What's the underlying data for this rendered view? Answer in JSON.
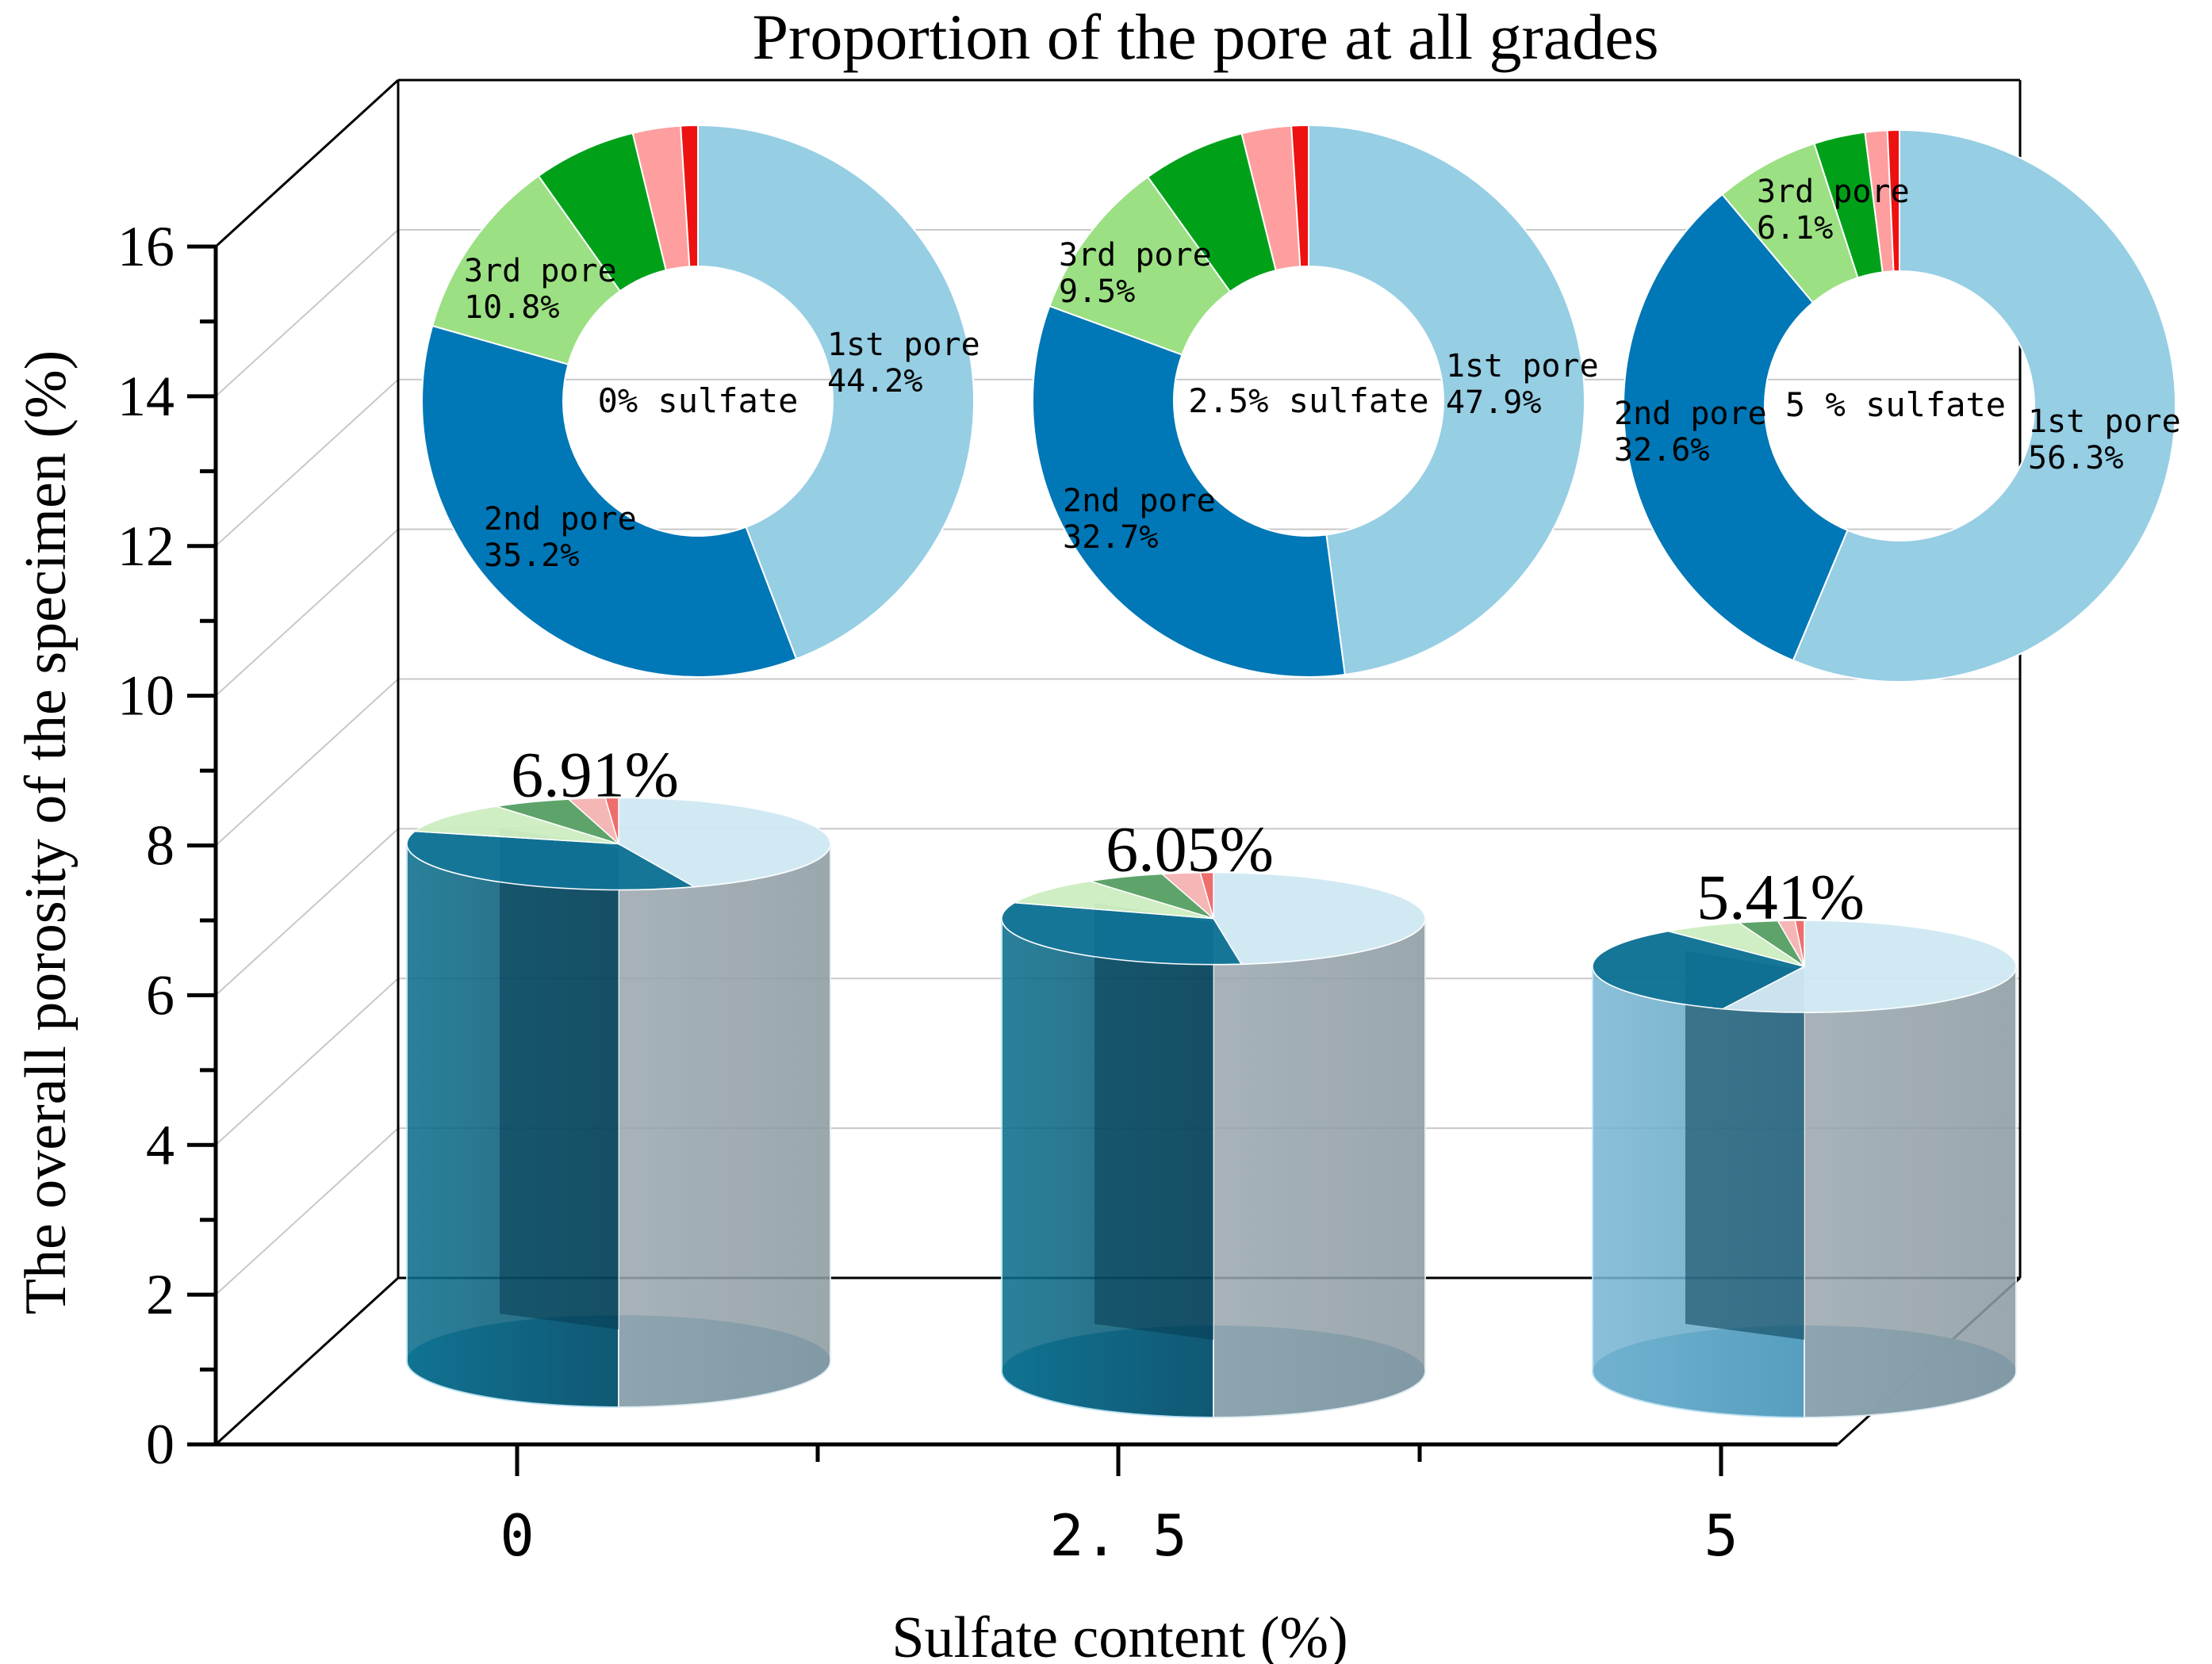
{
  "chart_data": {
    "type": "bar",
    "title": "Proportion of the pore at all grades",
    "xlabel": "Sulfate content (%)",
    "ylabel": "The overall porosity of the specimen (%)",
    "categories": [
      "0",
      "2. 5",
      "5"
    ],
    "values": [
      6.91,
      6.05,
      5.41
    ],
    "value_labels": [
      "6.91%",
      "6.05%",
      "5.41%"
    ],
    "ylim": [
      0,
      16
    ],
    "yticks": [
      0,
      2,
      4,
      6,
      8,
      10,
      12,
      14,
      16
    ],
    "ytick_labels": [
      "0",
      "2",
      "4",
      "6",
      "8",
      "10",
      "12",
      "14",
      "16"
    ],
    "grid": true,
    "bar_style": "3d-cylinder",
    "pie_series_colors": [
      "#96cee4",
      "#0077b6",
      "#9be083",
      "#00a119",
      "#ff9e9e",
      "#ee1111"
    ],
    "donuts": [
      {
        "center_label": "0% sulfate",
        "slices": [
          {
            "value": 44.2,
            "color": "#96cee4",
            "label_name": "1st pore",
            "label_value": "44.2%"
          },
          {
            "value": 35.2,
            "color": "#0077b6",
            "label_name": "2nd pore",
            "label_value": "35.2%"
          },
          {
            "value": 10.8,
            "color": "#9be083",
            "label_name": "3rd pore",
            "label_value": "10.8%"
          },
          {
            "value": 6.0,
            "color": "#00a119",
            "label_name": "",
            "label_value": ""
          },
          {
            "value": 2.8,
            "color": "#ff9e9e",
            "label_name": "",
            "label_value": ""
          },
          {
            "value": 1.0,
            "color": "#ee1111",
            "label_name": "",
            "label_value": ""
          }
        ]
      },
      {
        "center_label": "2.5% sulfate",
        "slices": [
          {
            "value": 47.9,
            "color": "#96cee4",
            "label_name": "1st pore",
            "label_value": "47.9%"
          },
          {
            "value": 32.7,
            "color": "#0077b6",
            "label_name": "2nd pore",
            "label_value": "32.7%"
          },
          {
            "value": 9.5,
            "color": "#9be083",
            "label_name": "3rd pore",
            "label_value": "9.5%"
          },
          {
            "value": 6.0,
            "color": "#00a119",
            "label_name": "",
            "label_value": ""
          },
          {
            "value": 2.9,
            "color": "#ff9e9e",
            "label_name": "",
            "label_value": ""
          },
          {
            "value": 1.0,
            "color": "#ee1111",
            "label_name": "",
            "label_value": ""
          }
        ]
      },
      {
        "center_label": "5 % sulfate",
        "slices": [
          {
            "value": 56.3,
            "color": "#96cee4",
            "label_name": "1st pore",
            "label_value": "56.3%"
          },
          {
            "value": 32.6,
            "color": "#0077b6",
            "label_name": "2nd pore",
            "label_value": "32.6%"
          },
          {
            "value": 6.1,
            "color": "#9be083",
            "label_name": "3rd pore",
            "label_value": "6.1%"
          },
          {
            "value": 3.0,
            "color": "#00a119",
            "label_name": "",
            "label_value": ""
          },
          {
            "value": 1.3,
            "color": "#ff9e9e",
            "label_name": "",
            "label_value": ""
          },
          {
            "value": 0.7,
            "color": "#ee1111",
            "label_name": "",
            "label_value": ""
          }
        ]
      }
    ]
  }
}
